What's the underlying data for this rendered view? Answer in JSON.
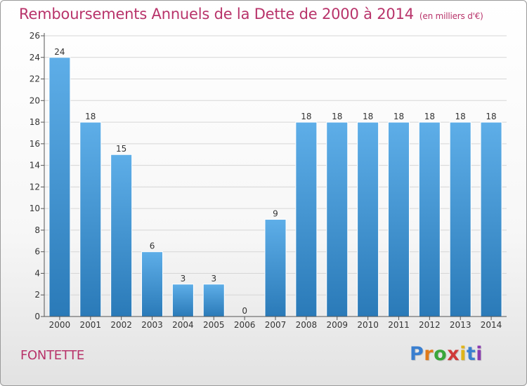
{
  "header": {
    "title": "Remboursements Annuels de la Dette de 2000 à 2014",
    "unit": "(en milliers d'€)"
  },
  "commune": "FONTETTE",
  "logo": {
    "text": "Proxiti",
    "letter_colors": [
      "#3a7fd0",
      "#e07a1a",
      "#3aa63a",
      "#d03a3a",
      "#e0b51a",
      "#3a7fd0",
      "#8a3ab0"
    ]
  },
  "colors": {
    "title": "#b8336a",
    "bar_top": "#5eaee8",
    "bar_bottom": "#2a7ab8",
    "grid": "#d6d6d6"
  },
  "chart_data": {
    "type": "bar",
    "categories": [
      "2000",
      "2001",
      "2002",
      "2003",
      "2004",
      "2005",
      "2006",
      "2007",
      "2008",
      "2009",
      "2010",
      "2011",
      "2012",
      "2013",
      "2014"
    ],
    "values": [
      24,
      18,
      15,
      6,
      3,
      3,
      0,
      9,
      18,
      18,
      18,
      18,
      18,
      18,
      18
    ],
    "ylim": [
      0,
      26
    ],
    "yticks": [
      0,
      2,
      4,
      6,
      8,
      10,
      12,
      14,
      16,
      18,
      20,
      22,
      24,
      26
    ],
    "grid": true
  }
}
